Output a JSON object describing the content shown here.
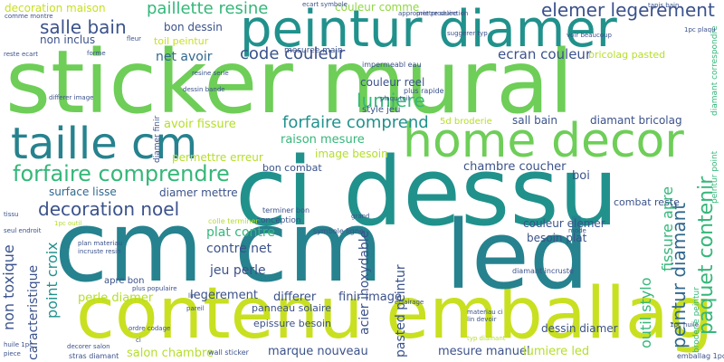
{
  "palette": {
    "dark_purple": "#440154",
    "indigo": "#3b528b",
    "blue": "#31688e",
    "teal_dark": "#26828e",
    "teal": "#21918c",
    "teal_green": "#1f9e89",
    "green_teal": "#35b779",
    "green": "#6ece58",
    "light_green": "#90d743",
    "lime": "#b5de2b",
    "yellow_lime": "#c8e020"
  },
  "words": [
    {
      "text": "sticker mural",
      "color": "#6ece58"
    },
    {
      "text": "cm cm",
      "color": "#26828e"
    },
    {
      "text": "ci dessu",
      "color": "#21918c"
    },
    {
      "text": "contenu emballag",
      "color": "#c8e020"
    },
    {
      "text": "peintur diamer",
      "color": "#21918c"
    },
    {
      "text": "led",
      "color": "#26828e"
    },
    {
      "text": "home decor",
      "color": "#6ece58"
    },
    {
      "text": "taille cm",
      "color": "#26828e"
    },
    {
      "text": "forfaire comprendre",
      "color": "#35b779"
    },
    {
      "text": "paquet contenir",
      "color": "#35b779"
    },
    {
      "text": "peintur diamant",
      "color": "#31688e"
    },
    {
      "text": "salle bain",
      "color": "#3b528b"
    },
    {
      "text": "decoration noel",
      "color": "#3b528b"
    },
    {
      "text": "paillette resine",
      "color": "#35b779"
    },
    {
      "text": "elemer legerement",
      "color": "#3b528b"
    },
    {
      "text": "code couleur",
      "color": "#3b528b"
    },
    {
      "text": "ecran couleur",
      "color": "#3b528b"
    },
    {
      "text": "lumiere",
      "color": "#35b779"
    },
    {
      "text": "forfaire comprend",
      "color": "#21918c"
    },
    {
      "text": "couleur comme",
      "color": "#90d743"
    },
    {
      "text": "decoration maison",
      "color": "#c8e020"
    },
    {
      "text": "non inclus",
      "color": "#3b528b"
    },
    {
      "text": "bon dessin",
      "color": "#3b528b"
    },
    {
      "text": "toil peintur",
      "color": "#c8e020"
    },
    {
      "text": "net avoir",
      "color": "#31688e"
    },
    {
      "text": "mesuree main",
      "color": "#3b528b"
    },
    {
      "text": "couleur reel",
      "color": "#3b528b"
    },
    {
      "text": "avoir fissure",
      "color": "#b5de2b"
    },
    {
      "text": "raison mesure",
      "color": "#35b779"
    },
    {
      "text": "image besoin",
      "color": "#b5de2b"
    },
    {
      "text": "chambre coucher",
      "color": "#3b528b"
    },
    {
      "text": "sall bain",
      "color": "#3b528b"
    },
    {
      "text": "diamant bricolag",
      "color": "#3b528b"
    },
    {
      "text": "permettre erreur",
      "color": "#b5de2b"
    },
    {
      "text": "bon combat",
      "color": "#3b528b"
    },
    {
      "text": "boi",
      "color": "#3b528b"
    },
    {
      "text": "surface lisse",
      "color": "#31688e"
    },
    {
      "text": "diamer mettre",
      "color": "#3b528b"
    },
    {
      "text": "acier inoxydable",
      "color": "#3b528b"
    },
    {
      "text": "point croix",
      "color": "#21918c"
    },
    {
      "text": "non toxique",
      "color": "#3b528b"
    },
    {
      "text": "caracteristique",
      "color": "#3b528b"
    },
    {
      "text": "plat contre",
      "color": "#35b779"
    },
    {
      "text": "contre net",
      "color": "#3b528b"
    },
    {
      "text": "jeu perle",
      "color": "#3b528b"
    },
    {
      "text": "apre bon",
      "color": "#3b528b"
    },
    {
      "text": "couleur elemer",
      "color": "#3b528b"
    },
    {
      "text": "besoin plat",
      "color": "#3b528b"
    },
    {
      "text": "fissure apre",
      "color": "#35b779"
    },
    {
      "text": "outil stylo",
      "color": "#35b779"
    },
    {
      "text": "perle diamer",
      "color": "#b5de2b"
    },
    {
      "text": "legerement",
      "color": "#3b528b"
    },
    {
      "text": "differer",
      "color": "#3b528b"
    },
    {
      "text": "finir image",
      "color": "#3b528b"
    },
    {
      "text": "pasted peintur",
      "color": "#3b528b"
    },
    {
      "text": "salon chambre",
      "color": "#b5de2b"
    },
    {
      "text": "marque nouveau",
      "color": "#3b528b"
    },
    {
      "text": "mesure manuel",
      "color": "#3b528b"
    },
    {
      "text": "lumiere led",
      "color": "#b5de2b"
    },
    {
      "text": "bricolag pasted",
      "color": "#b5de2b"
    },
    {
      "text": "dessin diamer",
      "color": "#3b528b"
    },
    {
      "text": "combat reste",
      "color": "#3b528b"
    },
    {
      "text": "diamant correspondre",
      "color": "#35b779"
    },
    {
      "text": "peintur point",
      "color": "#35b779"
    },
    {
      "text": "epissure besoin",
      "color": "#3b528b"
    },
    {
      "text": "panneau solaire",
      "color": "#3b528b"
    },
    {
      "text": "style jeu",
      "color": "#3b528b"
    },
    {
      "text": "5d broderie",
      "color": "#b5de2b"
    },
    {
      "text": "broderie peintur",
      "color": "#35b779"
    },
    {
      "text": "conception",
      "color": "#3b528b"
    },
    {
      "text": "terminer bon",
      "color": "#3b528b"
    },
    {
      "text": "impermeabl eau",
      "color": "#3b528b"
    },
    {
      "text": "plus rapide",
      "color": "#3b528b"
    },
    {
      "text": "diamant incruste",
      "color": "#3b528b"
    },
    {
      "text": "symbole ligne",
      "color": "#3b528b"
    },
    {
      "text": "colle terminer",
      "color": "#b5de2b"
    },
    {
      "text": "plan materiau",
      "color": "#3b528b"
    },
    {
      "text": "incruste resin",
      "color": "#3b528b"
    },
    {
      "text": "materiau ci",
      "color": "#3b528b"
    },
    {
      "text": "lin devoir",
      "color": "#3b528b"
    },
    {
      "text": "typ diamant",
      "color": "#b5de2b"
    },
    {
      "text": "1pc huile",
      "color": "#3b528b"
    },
    {
      "text": "emballag 1pc",
      "color": "#3b528b"
    },
    {
      "text": "wall sticker",
      "color": "#3b528b"
    },
    {
      "text": "stras diamant",
      "color": "#3b528b"
    },
    {
      "text": "decorer salon",
      "color": "#3b528b"
    },
    {
      "text": "ordre codage",
      "color": "#3b528b"
    },
    {
      "text": "huile 1pc",
      "color": "#3b528b"
    },
    {
      "text": "piece",
      "color": "#3b528b"
    },
    {
      "text": "comme montre",
      "color": "#3b528b"
    },
    {
      "text": "approprie produire",
      "color": "#3b528b"
    },
    {
      "text": "ecart symbole",
      "color": "#3b528b"
    },
    {
      "text": "mettre selection",
      "color": "#3b528b"
    },
    {
      "text": "tapis bain",
      "color": "#3b528b"
    },
    {
      "text": "suggerer typ",
      "color": "#3b528b"
    },
    {
      "text": "1pc plaqu",
      "color": "#3b528b"
    },
    {
      "text": "reste ecart",
      "color": "#3b528b"
    },
    {
      "text": "forme",
      "color": "#3b528b"
    },
    {
      "text": "fleur",
      "color": "#3b528b"
    },
    {
      "text": "diamer finir",
      "color": "#3b528b"
    },
    {
      "text": "tissu",
      "color": "#3b528b"
    },
    {
      "text": "resine serie",
      "color": "#3b528b"
    },
    {
      "text": "dessin bande",
      "color": "#3b528b"
    },
    {
      "text": "plaqu toil",
      "color": "#3b528b"
    },
    {
      "text": "differer image",
      "color": "#3b528b"
    },
    {
      "text": "1pc outil",
      "color": "#b5de2b"
    },
    {
      "text": "seul endroit",
      "color": "#3b528b"
    },
    {
      "text": "pareil",
      "color": "#3b528b"
    },
    {
      "text": "plus populaire",
      "color": "#3b528b"
    },
    {
      "text": "grand",
      "color": "#3b528b"
    },
    {
      "text": "mode",
      "color": "#3b528b"
    },
    {
      "text": "voir beaucoup",
      "color": "#3b528b"
    },
    {
      "text": "eclairage",
      "color": "#3b528b"
    },
    {
      "text": "lin",
      "color": "#3b528b"
    },
    {
      "text": "ci",
      "color": "#3b528b"
    }
  ]
}
